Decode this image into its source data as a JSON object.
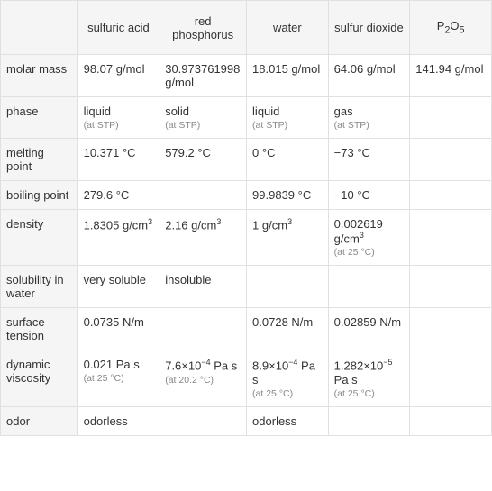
{
  "columns": [
    "",
    "sulfuric acid",
    "red phosphorus",
    "water",
    "sulfur dioxide",
    "P2O5"
  ],
  "p2o5_formula": "P<sub>2</sub>O<sub>5</sub>",
  "rows": [
    {
      "label": "molar mass",
      "cells": [
        {
          "val": "98.07 g/mol",
          "note": ""
        },
        {
          "val": "30.973761998 g/mol",
          "note": ""
        },
        {
          "val": "18.015 g/mol",
          "note": ""
        },
        {
          "val": "64.06 g/mol",
          "note": ""
        },
        {
          "val": "141.94 g/mol",
          "note": ""
        }
      ]
    },
    {
      "label": "phase",
      "cells": [
        {
          "val": "liquid",
          "note": "(at STP)"
        },
        {
          "val": "solid",
          "note": "(at STP)"
        },
        {
          "val": "liquid",
          "note": "(at STP)"
        },
        {
          "val": "gas",
          "note": "(at STP)"
        },
        {
          "val": "",
          "note": ""
        }
      ]
    },
    {
      "label": "melting point",
      "cells": [
        {
          "val": "10.371 °C",
          "note": ""
        },
        {
          "val": "579.2 °C",
          "note": ""
        },
        {
          "val": "0 °C",
          "note": ""
        },
        {
          "val": "−73 °C",
          "note": ""
        },
        {
          "val": "",
          "note": ""
        }
      ]
    },
    {
      "label": "boiling point",
      "cells": [
        {
          "val": "279.6 °C",
          "note": ""
        },
        {
          "val": "",
          "note": ""
        },
        {
          "val": "99.9839 °C",
          "note": ""
        },
        {
          "val": "−10 °C",
          "note": ""
        },
        {
          "val": "",
          "note": ""
        }
      ]
    },
    {
      "label": "density",
      "cells": [
        {
          "val": "1.8305 g/cm<sup>3</sup>",
          "note": ""
        },
        {
          "val": "2.16 g/cm<sup>3</sup>",
          "note": ""
        },
        {
          "val": "1 g/cm<sup>3</sup>",
          "note": ""
        },
        {
          "val": "0.002619 g/cm<sup>3</sup>",
          "note": "(at 25 °C)"
        },
        {
          "val": "",
          "note": ""
        }
      ]
    },
    {
      "label": "solubility in water",
      "cells": [
        {
          "val": "very soluble",
          "note": ""
        },
        {
          "val": "insoluble",
          "note": ""
        },
        {
          "val": "",
          "note": ""
        },
        {
          "val": "",
          "note": ""
        },
        {
          "val": "",
          "note": ""
        }
      ]
    },
    {
      "label": "surface tension",
      "cells": [
        {
          "val": "0.0735 N/m",
          "note": ""
        },
        {
          "val": "",
          "note": ""
        },
        {
          "val": "0.0728 N/m",
          "note": ""
        },
        {
          "val": "0.02859 N/m",
          "note": ""
        },
        {
          "val": "",
          "note": ""
        }
      ]
    },
    {
      "label": "dynamic viscosity",
      "cells": [
        {
          "val": "0.021 Pa s",
          "note": "(at 25 °C)"
        },
        {
          "val": "7.6×10<sup>−4</sup> Pa s",
          "note": "(at 20.2 °C)"
        },
        {
          "val": "8.9×10<sup>−4</sup> Pa s",
          "note": "(at 25 °C)"
        },
        {
          "val": "1.282×10<sup>−5</sup> Pa s",
          "note": "(at 25 °C)"
        },
        {
          "val": "",
          "note": ""
        }
      ]
    },
    {
      "label": "odor",
      "cells": [
        {
          "val": "odorless",
          "note": ""
        },
        {
          "val": "",
          "note": ""
        },
        {
          "val": "odorless",
          "note": ""
        },
        {
          "val": "",
          "note": ""
        },
        {
          "val": "",
          "note": ""
        }
      ]
    }
  ],
  "colors": {
    "border": "#e0e0e0",
    "header_bg": "#f5f5f5",
    "text": "#333333",
    "note": "#888888"
  },
  "font_sizes": {
    "cell": 13,
    "note": 10.5
  }
}
